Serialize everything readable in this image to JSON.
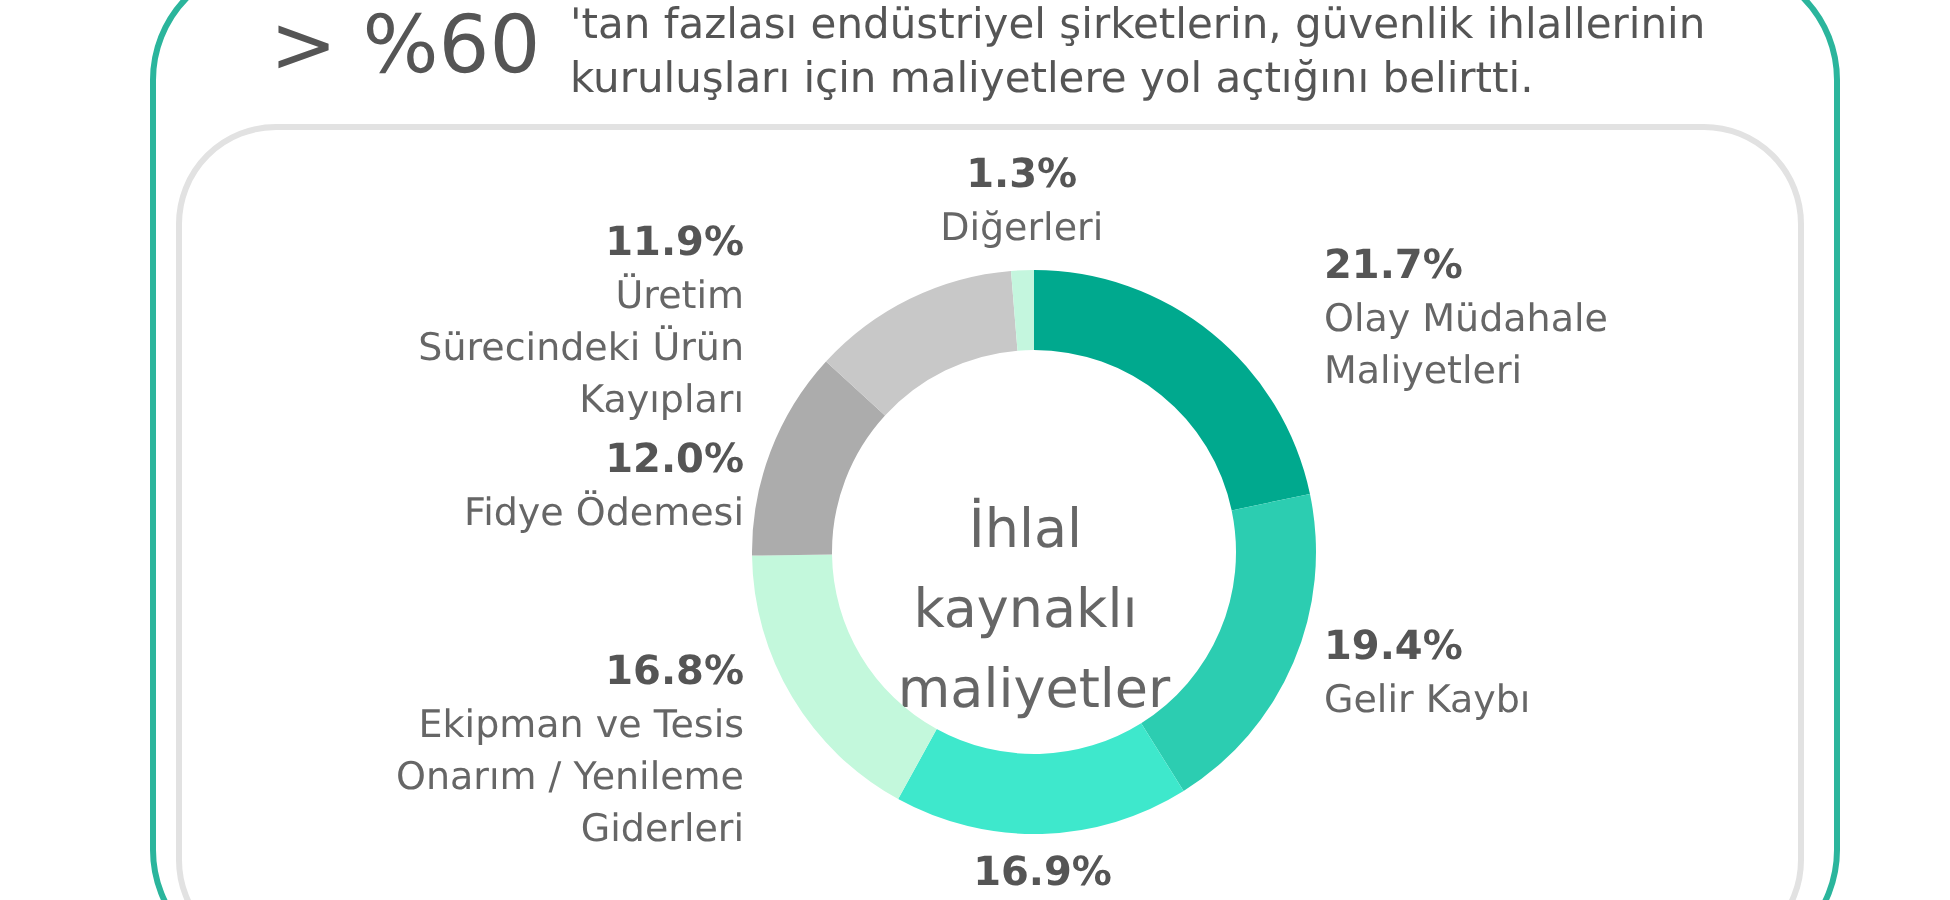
{
  "chart_data": {
    "type": "donut",
    "title": "İhlal kaynaklı maliyetler",
    "annotations": [
      "> %60",
      "'tan fazlası endüstriyel şirketlerin, güvenlik ihlallerinin kuruluşları için maliyetlere yol açtığını belirtti."
    ],
    "categories": [
      "Olay Müdahale\nMaliyetleri",
      "Gelir Kaybı",
      null,
      "Ekipman ve Tesis\nOnarım / Yenileme\nGiderleri",
      "Fidye Ödemesi",
      "Üretim\nSürecindeki Ürün\nKayıpları",
      "Diğerleri"
    ],
    "values": [
      21.7,
      19.4,
      16.9,
      16.8,
      12.0,
      11.9,
      1.3
    ],
    "colors": [
      "#00a98e",
      "#2ccdb1",
      "#3ee8cc",
      "#c3f8dc",
      "#acacac",
      "#c8c8c8",
      "#c4f6de"
    ],
    "value_labels": [
      "21.7%",
      "19.4%",
      "16.9%",
      "16.8%",
      "12.0%",
      "11.9%",
      "1.3%"
    ]
  }
}
